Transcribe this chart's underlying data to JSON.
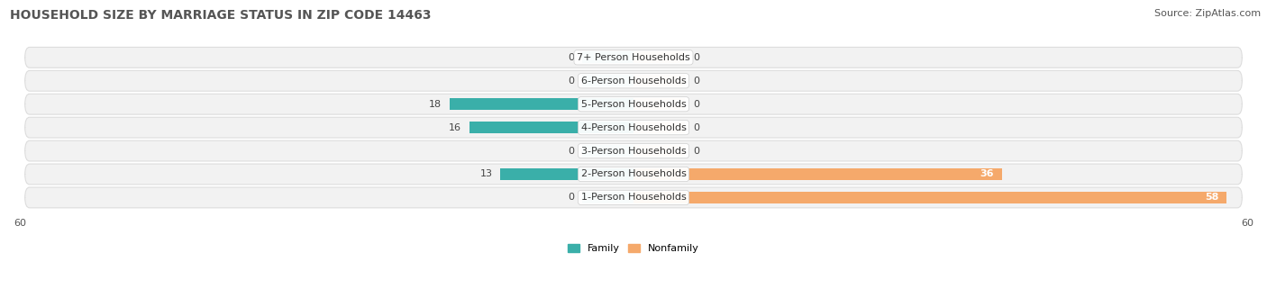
{
  "title": "HOUSEHOLD SIZE BY MARRIAGE STATUS IN ZIP CODE 14463",
  "source": "Source: ZipAtlas.com",
  "categories": [
    "7+ Person Households",
    "6-Person Households",
    "5-Person Households",
    "4-Person Households",
    "3-Person Households",
    "2-Person Households",
    "1-Person Households"
  ],
  "family_values": [
    0,
    0,
    18,
    16,
    0,
    13,
    0
  ],
  "nonfamily_values": [
    0,
    0,
    0,
    0,
    0,
    36,
    58
  ],
  "family_color": "#3AAFA9",
  "nonfamily_color": "#F5A96B",
  "family_color_light": "#90CCCA",
  "nonfamily_color_light": "#F5D5B0",
  "xlim_left": -60,
  "xlim_right": 60,
  "title_fontsize": 10,
  "source_fontsize": 8,
  "label_fontsize": 8,
  "tick_fontsize": 8,
  "bar_height": 0.68,
  "stub_size": 5,
  "legend_labels": [
    "Family",
    "Nonfamily"
  ],
  "row_bg_color": "#f2f2f2",
  "row_border_color": "#dddddd"
}
